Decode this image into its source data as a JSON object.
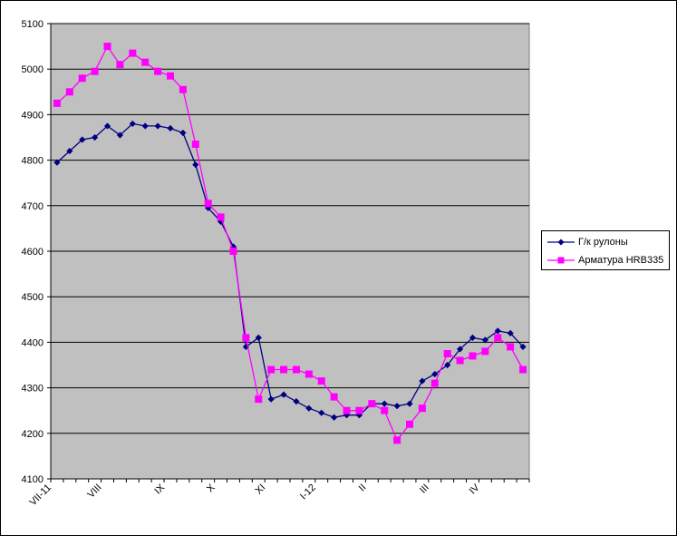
{
  "chart_data": {
    "type": "line",
    "title": "",
    "xlabel": "",
    "ylabel": "",
    "ylim": [
      4100,
      5100
    ],
    "yticks": [
      4100,
      4200,
      4300,
      4400,
      4500,
      4600,
      4700,
      4800,
      4900,
      5000,
      5100
    ],
    "grid": true,
    "plot_background": "#c0c0c0",
    "legend_position": "right",
    "x_count": 38,
    "x_tick_labels": [
      {
        "label": "VII-11",
        "index": 0
      },
      {
        "label": "VIII",
        "index": 4
      },
      {
        "label": "IX",
        "index": 9
      },
      {
        "label": "X",
        "index": 13
      },
      {
        "label": "XI",
        "index": 17
      },
      {
        "label": "I-12",
        "index": 21
      },
      {
        "label": "II",
        "index": 25
      },
      {
        "label": "III",
        "index": 30
      },
      {
        "label": "IV",
        "index": 34
      }
    ],
    "series": [
      {
        "name": "Г/к рулоны",
        "color": "#000080",
        "marker": "diamond",
        "values": [
          4795,
          4820,
          4845,
          4850,
          4875,
          4855,
          4880,
          4875,
          4875,
          4870,
          4860,
          4790,
          4695,
          4665,
          4610,
          4390,
          4410,
          4275,
          4285,
          4270,
          4255,
          4245,
          4235,
          4240,
          4240,
          4265,
          4265,
          4260,
          4265,
          4315,
          4330,
          4350,
          4385,
          4410,
          4405,
          4425,
          4420,
          4390
        ]
      },
      {
        "name": "Арматура HRB335",
        "color": "#ff00ff",
        "marker": "square",
        "values": [
          4925,
          4950,
          4980,
          4995,
          5050,
          5010,
          5035,
          5015,
          4995,
          4985,
          4955,
          4835,
          4705,
          4675,
          4600,
          4410,
          4275,
          4340,
          4340,
          4340,
          4330,
          4315,
          4280,
          4250,
          4250,
          4265,
          4250,
          4185,
          4220,
          4255,
          4310,
          4375,
          4360,
          4370,
          4380,
          4410,
          4390,
          4340
        ]
      }
    ]
  }
}
